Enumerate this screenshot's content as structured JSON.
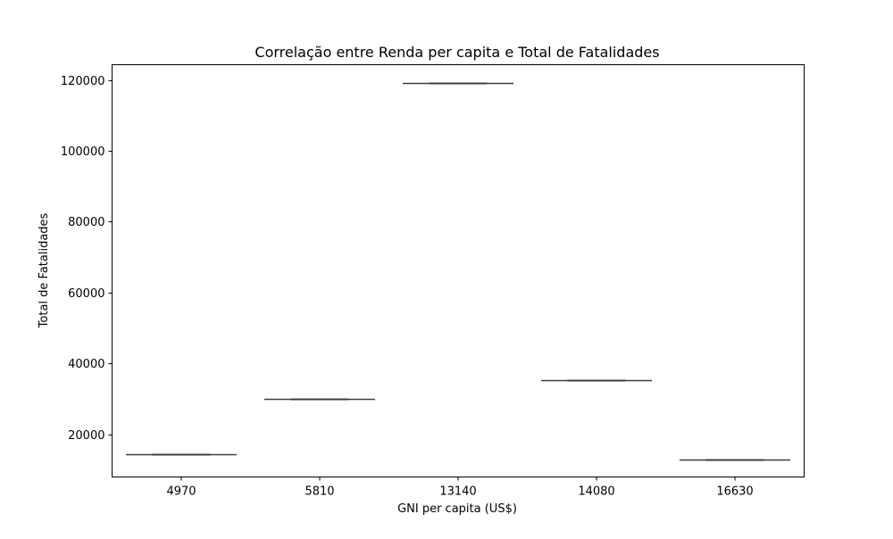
{
  "chart_data": {
    "type": "box",
    "title": "Correlação entre Renda per capita e Total de Fatalidades",
    "xlabel": "GNI per capita (US$)",
    "ylabel": "Total de Fatalidades",
    "categories": [
      "4970",
      "5810",
      "13140",
      "14080",
      "16630"
    ],
    "values": [
      14500,
      30100,
      119100,
      35400,
      13000
    ],
    "ylim": [
      8000,
      124300
    ],
    "yticks": [
      20000,
      40000,
      60000,
      80000,
      100000,
      120000
    ],
    "grid": false,
    "legend": "none",
    "colors": {
      "box_line": "#3f3f3f",
      "axis": "#000000",
      "background": "#ffffff"
    }
  }
}
